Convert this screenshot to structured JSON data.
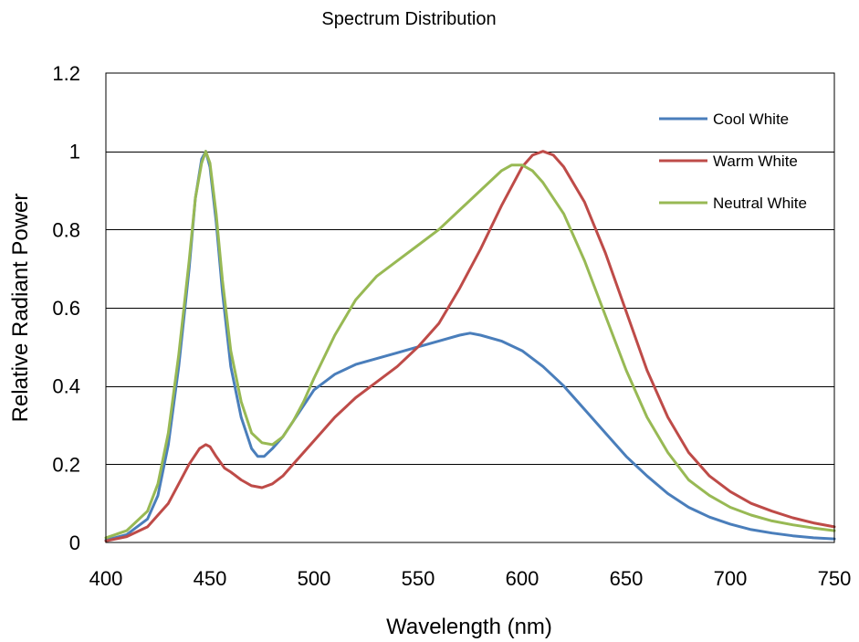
{
  "chart_data": {
    "type": "line",
    "title": "Spectrum Distribution",
    "xlabel": "Wavelength (nm)",
    "ylabel": "Relative Radiant Power",
    "xlim": [
      400,
      750
    ],
    "ylim": [
      0,
      1.2
    ],
    "x_ticks": [
      400,
      450,
      500,
      550,
      600,
      650,
      700,
      750
    ],
    "y_ticks": [
      0,
      0.2,
      0.4,
      0.6,
      0.8,
      1,
      1.2
    ],
    "x_tick_labels": [
      "400",
      "450",
      "500",
      "550",
      "600",
      "650",
      "700",
      "750"
    ],
    "y_tick_labels": [
      "0",
      "0.2",
      "0.4",
      "0.6",
      "0.8",
      "1",
      "1.2"
    ],
    "grid": "horizontal",
    "legend_position": "top-right",
    "series": [
      {
        "name": "Cool White",
        "color": "#4a7ebb",
        "x": [
          400,
          410,
          420,
          425,
          430,
          435,
          440,
          443,
          446,
          448,
          450,
          453,
          456,
          460,
          465,
          470,
          473,
          476,
          480,
          485,
          490,
          495,
          500,
          510,
          520,
          530,
          540,
          550,
          560,
          570,
          575,
          580,
          590,
          600,
          610,
          620,
          630,
          640,
          650,
          660,
          670,
          680,
          690,
          700,
          710,
          720,
          730,
          740,
          750
        ],
        "y": [
          0.006,
          0.02,
          0.06,
          0.12,
          0.25,
          0.45,
          0.7,
          0.88,
          0.98,
          1.0,
          0.96,
          0.82,
          0.64,
          0.45,
          0.32,
          0.24,
          0.22,
          0.22,
          0.24,
          0.27,
          0.31,
          0.35,
          0.39,
          0.43,
          0.455,
          0.47,
          0.485,
          0.5,
          0.515,
          0.53,
          0.535,
          0.53,
          0.515,
          0.49,
          0.45,
          0.4,
          0.34,
          0.28,
          0.22,
          0.17,
          0.125,
          0.09,
          0.065,
          0.047,
          0.033,
          0.024,
          0.017,
          0.012,
          0.009
        ]
      },
      {
        "name": "Warm White",
        "color": "#be4b48",
        "x": [
          400,
          410,
          420,
          430,
          435,
          440,
          445,
          448,
          450,
          453,
          457,
          460,
          465,
          470,
          475,
          480,
          485,
          490,
          500,
          510,
          520,
          530,
          540,
          550,
          560,
          570,
          580,
          590,
          595,
          600,
          605,
          610,
          615,
          620,
          630,
          640,
          650,
          660,
          670,
          680,
          690,
          700,
          710,
          720,
          730,
          740,
          750
        ],
        "y": [
          0.004,
          0.015,
          0.04,
          0.1,
          0.15,
          0.2,
          0.24,
          0.25,
          0.245,
          0.22,
          0.19,
          0.18,
          0.16,
          0.145,
          0.14,
          0.15,
          0.17,
          0.2,
          0.26,
          0.32,
          0.37,
          0.41,
          0.45,
          0.5,
          0.56,
          0.65,
          0.75,
          0.86,
          0.91,
          0.96,
          0.99,
          1.0,
          0.99,
          0.96,
          0.87,
          0.74,
          0.59,
          0.44,
          0.32,
          0.23,
          0.17,
          0.13,
          0.1,
          0.08,
          0.063,
          0.05,
          0.04
        ]
      },
      {
        "name": "Neutral White",
        "color": "#98b954",
        "x": [
          400,
          410,
          420,
          425,
          430,
          435,
          440,
          443,
          446,
          448,
          450,
          453,
          456,
          460,
          465,
          470,
          475,
          480,
          485,
          490,
          495,
          500,
          510,
          520,
          530,
          540,
          550,
          560,
          570,
          580,
          590,
          595,
          600,
          605,
          610,
          620,
          630,
          640,
          650,
          660,
          670,
          680,
          690,
          700,
          710,
          720,
          730,
          740,
          750
        ],
        "y": [
          0.012,
          0.03,
          0.08,
          0.15,
          0.28,
          0.48,
          0.72,
          0.88,
          0.97,
          1.0,
          0.97,
          0.84,
          0.67,
          0.49,
          0.36,
          0.28,
          0.255,
          0.25,
          0.27,
          0.31,
          0.36,
          0.42,
          0.53,
          0.62,
          0.68,
          0.72,
          0.76,
          0.8,
          0.85,
          0.9,
          0.95,
          0.965,
          0.965,
          0.95,
          0.92,
          0.84,
          0.72,
          0.58,
          0.44,
          0.32,
          0.23,
          0.16,
          0.12,
          0.09,
          0.07,
          0.055,
          0.045,
          0.037,
          0.03
        ]
      }
    ]
  }
}
